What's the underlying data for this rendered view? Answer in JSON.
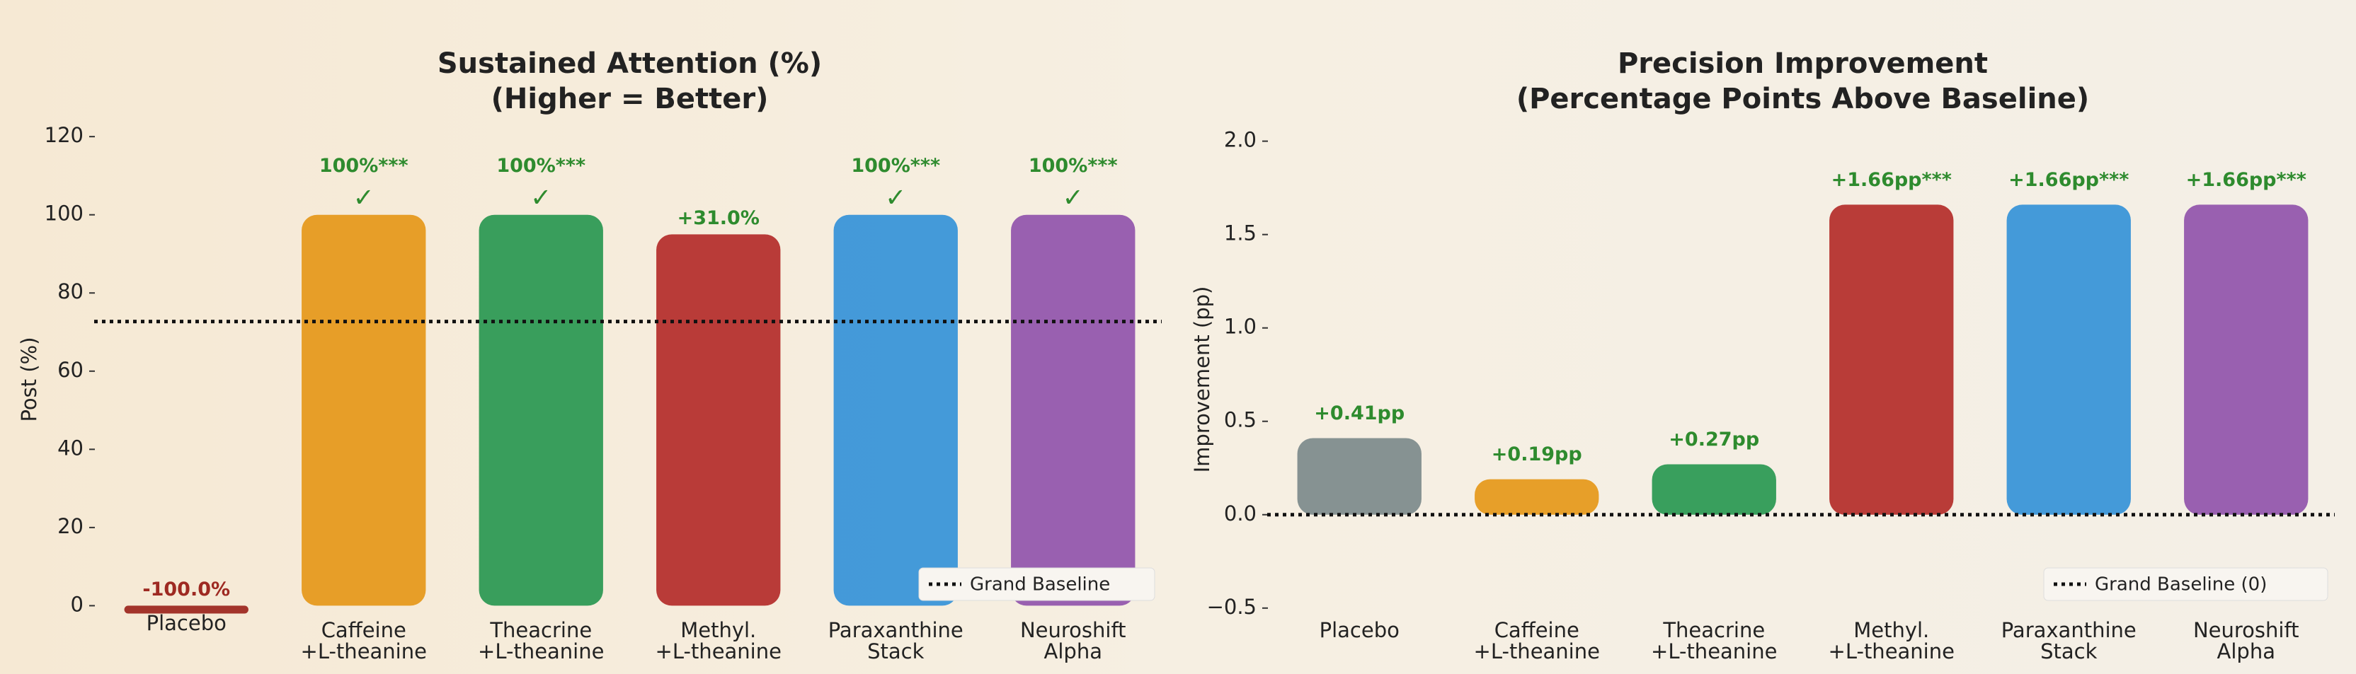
{
  "chart_data": [
    {
      "type": "bar",
      "title": [
        "Sustained Attention (%)",
        "(Higher = Better)"
      ],
      "y_label": "Post (%)",
      "categories": [
        [
          "Placebo"
        ],
        [
          "Caffeine",
          "+L-theanine"
        ],
        [
          "Theacrine",
          "+L-theanine"
        ],
        [
          "Methyl.",
          "+L-theanine"
        ],
        [
          "Paraxanthine",
          "Stack"
        ],
        [
          "Neuroshift",
          "Alpha"
        ]
      ],
      "values": [
        -2,
        100,
        100,
        95,
        100,
        100
      ],
      "annotations": [
        [
          "-100.0%"
        ],
        [
          "100%***",
          "✓"
        ],
        [
          "100%***",
          "✓"
        ],
        [
          "+31.0%"
        ],
        [
          "100%***",
          "✓"
        ],
        [
          "100%***",
          "✓"
        ]
      ],
      "colors": [
        "#9e2a22",
        "#e69a1f",
        "#2e9a55",
        "#b5322e",
        "#3a95d8",
        "#9457ad"
      ],
      "annotation_colors": [
        "#9e2a22",
        "#2e8b2e",
        "#2e8b2e",
        "#2e8b2e",
        "#2e8b2e",
        "#2e8b2e"
      ],
      "baseline": 72.7,
      "legend": "Grand Baseline",
      "legend_position": "lower right",
      "ylim": [
        -3,
        126
      ],
      "yticks": [
        0,
        20,
        40,
        60,
        80,
        100,
        120
      ]
    },
    {
      "type": "bar",
      "title": [
        "Precision Improvement",
        "(Percentage Points Above Baseline)"
      ],
      "y_label": "Improvement (pp)",
      "categories": [
        [
          "Placebo"
        ],
        [
          "Caffeine",
          "+L-theanine"
        ],
        [
          "Theacrine",
          "+L-theanine"
        ],
        [
          "Methyl.",
          "+L-theanine"
        ],
        [
          "Paraxanthine",
          "Stack"
        ],
        [
          "Neuroshift",
          "Alpha"
        ]
      ],
      "values": [
        0.41,
        0.19,
        0.27,
        1.66,
        1.66,
        1.66
      ],
      "value_labels": [
        "+0.41pp",
        "+0.19pp",
        "+0.27pp",
        "+1.66pp***",
        "+1.66pp***",
        "+1.66pp***"
      ],
      "colors": [
        "#7f8c8d",
        "#e69a1f",
        "#2e9a55",
        "#b5322e",
        "#3a95d8",
        "#9457ad"
      ],
      "label_color": "#2e8b2e",
      "baseline": 0,
      "legend": "Grand Baseline (0)",
      "legend_position": "lower right",
      "ylim": [
        -0.55,
        2.15
      ],
      "yticks": [
        {
          "value": -0.5,
          "label": "−0.5"
        },
        {
          "value": 0,
          "label": "0.0"
        },
        0.5,
        {
          "value": 1,
          "label": "1.0"
        },
        1.5,
        {
          "value": 2,
          "label": "2.0"
        }
      ]
    }
  ]
}
